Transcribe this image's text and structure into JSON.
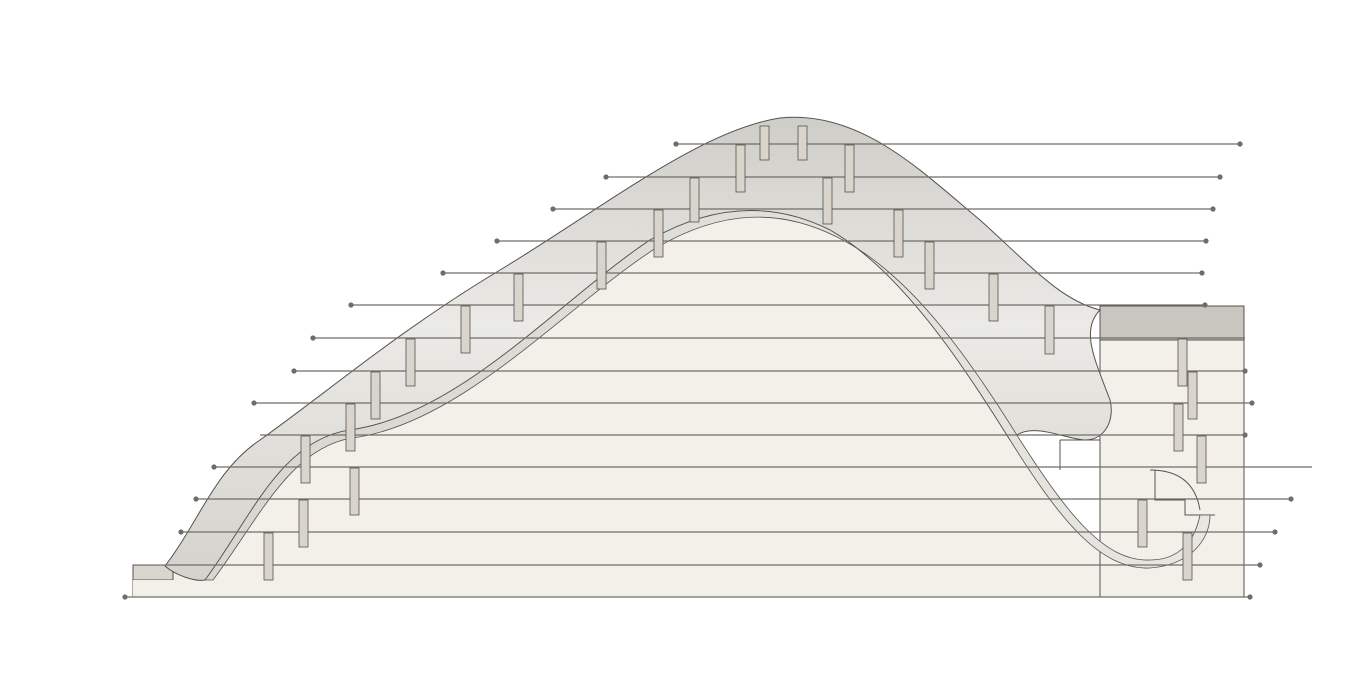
{
  "viewport": {
    "background": "#ffffff"
  },
  "model": {
    "shell_fill": "#dcdad5",
    "shell_highlight": "#ecebe7",
    "shell_shadow": "#b9b7b1",
    "base_fill": "#f3f0ea",
    "edge_color": "#55534f",
    "section_line_color": "#6f6d69",
    "post_fill": "#d9d5cd",
    "deck_fill": "#c9c6bf"
  }
}
